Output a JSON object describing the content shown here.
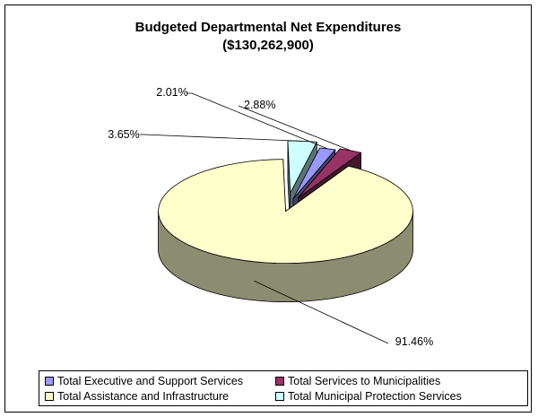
{
  "chart_data": {
    "type": "pie",
    "title": "Budgeted Departmental Net Expenditures",
    "subtitle": "($130,262,900)",
    "slices": [
      {
        "label": "Total Executive and Support Services",
        "value": 2.01,
        "value_label": "2.01%",
        "color": "#9999ff"
      },
      {
        "label": "Total Services to Municipalities",
        "value": 2.88,
        "value_label": "2.88%",
        "color": "#993366"
      },
      {
        "label": "Total Assistance and Infrastructure",
        "value": 91.46,
        "value_label": "91.46%",
        "color": "#ffffcc"
      },
      {
        "label": "Total Municipal Protection Services",
        "value": 3.65,
        "value_label": "3.65%",
        "color": "#ccffff"
      }
    ],
    "legend": {
      "placement": "bottom"
    },
    "style": "3d-exploded"
  }
}
